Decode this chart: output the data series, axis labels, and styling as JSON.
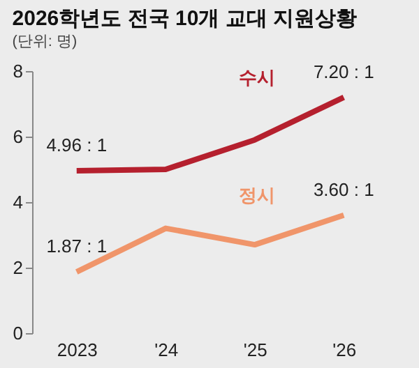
{
  "chart_data": {
    "type": "line",
    "title": "2026학년도 전국 10개 교대 지원상황",
    "subtitle": "(단위: 명)",
    "categories": [
      "2023",
      "'24",
      "'25",
      "'26"
    ],
    "series": [
      {
        "name": "수시",
        "color": "#b5202e",
        "values": [
          4.96,
          5.0,
          5.9,
          7.2
        ],
        "value_labels": [
          "4.96 : 1",
          null,
          null,
          "7.20 : 1"
        ]
      },
      {
        "name": "정시",
        "color": "#f0956a",
        "values": [
          1.87,
          3.2,
          2.7,
          3.6
        ],
        "value_labels": [
          "1.87 : 1",
          null,
          null,
          "3.60 : 1"
        ]
      }
    ],
    "ylim": [
      0,
      8
    ],
    "yticks": [
      0,
      2,
      4,
      6,
      8
    ],
    "grid": false
  }
}
